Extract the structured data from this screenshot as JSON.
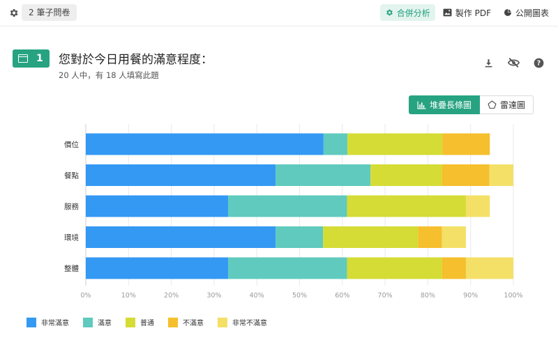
{
  "topbar": {
    "count_label": "2 筆子問卷",
    "merge_label": "合併分析",
    "pdf_label": "製作 PDF",
    "public_label": "公開圖表"
  },
  "question": {
    "number": "1",
    "title": "您對於今日用餐的滿意程度：",
    "subtitle": "20 人中，有 18 人填寫此題"
  },
  "chart_switch": {
    "stacked_label": "堆疊長條圖",
    "radar_label": "雷達圖"
  },
  "colors": {
    "accent": "#27a382",
    "very_satisfied": "#3399f3",
    "satisfied": "#5fcabd",
    "neutral": "#d5dc35",
    "dissatisfied": "#f5bf2e",
    "very_dissatisfied": "#f4e067"
  },
  "chart_data": {
    "type": "bar",
    "orientation": "horizontal",
    "stacked": true,
    "categories": [
      "價位",
      "餐點",
      "服務",
      "環境",
      "整體"
    ],
    "series": [
      {
        "name": "非常滿意",
        "color": "#3399f3",
        "values": [
          55.6,
          44.4,
          33.3,
          44.4,
          33.3
        ]
      },
      {
        "name": "滿意",
        "color": "#5fcabd",
        "values": [
          5.6,
          22.2,
          27.8,
          11.1,
          27.8
        ]
      },
      {
        "name": "普通",
        "color": "#d5dc35",
        "values": [
          22.2,
          16.7,
          27.8,
          22.2,
          22.2
        ]
      },
      {
        "name": "不滿意",
        "color": "#f5bf2e",
        "values": [
          11.1,
          11.1,
          0,
          5.6,
          5.6
        ]
      },
      {
        "name": "非常不滿意",
        "color": "#f4e067",
        "values": [
          0,
          5.6,
          5.6,
          5.6,
          11.1
        ]
      }
    ],
    "x_ticks": [
      "0%",
      "10%",
      "20%",
      "30%",
      "40%",
      "50%",
      "60%",
      "70%",
      "80%",
      "90%",
      "100%"
    ],
    "xlim": [
      0,
      100
    ],
    "grid": true,
    "legend_position": "bottom-left"
  }
}
